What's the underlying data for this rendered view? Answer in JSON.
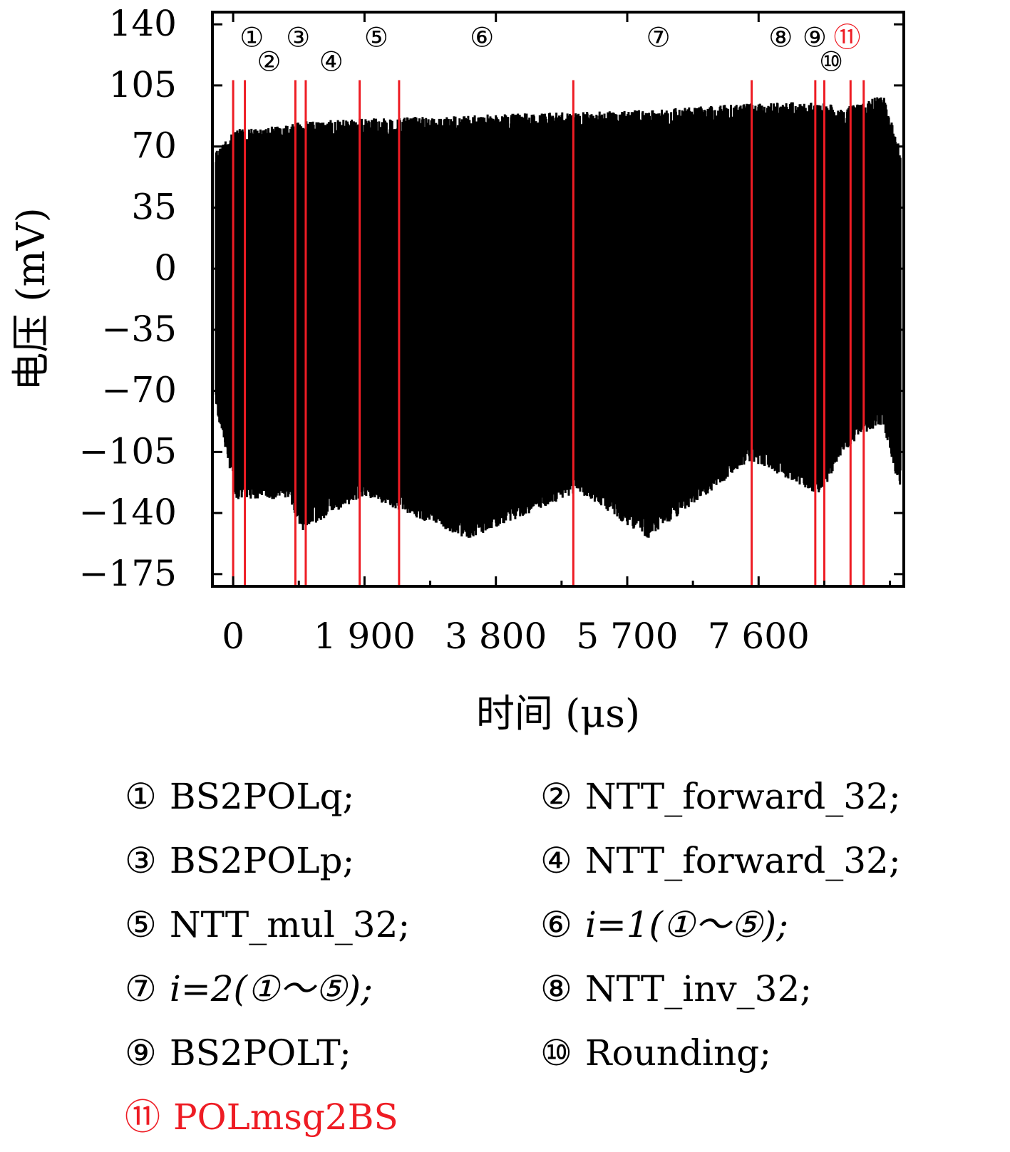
{
  "chart_data": {
    "type": "line",
    "xlabel": "时间 (μs)",
    "ylabel": "电压 (mV)",
    "xlim": [
      -300,
      9700
    ],
    "ylim": [
      -182,
      147
    ],
    "x_tick_labels": [
      "0",
      "1 900",
      "3 800",
      "5 700",
      "7 600"
    ],
    "x_tick_values": [
      0,
      1900,
      3800,
      5700,
      7600
    ],
    "y_tick_labels": [
      "140",
      "105",
      "70",
      "35",
      "0",
      "−35",
      "−70",
      "−105",
      "−140",
      "−175"
    ],
    "y_tick_values": [
      140,
      105,
      70,
      35,
      0,
      -35,
      -70,
      -105,
      -140,
      -175
    ],
    "series": [
      {
        "color": "#000000",
        "description_points": [
          {
            "x": -250,
            "max": 68,
            "min": -80
          },
          {
            "x": 50,
            "max": 80,
            "min": -132
          },
          {
            "x": 800,
            "max": 82,
            "min": -132
          },
          {
            "x": 1000,
            "max": 85,
            "min": -150
          },
          {
            "x": 1900,
            "max": 86,
            "min": -130
          },
          {
            "x": 3400,
            "max": 88,
            "min": -155
          },
          {
            "x": 5000,
            "max": 90,
            "min": -128
          },
          {
            "x": 6000,
            "max": 91,
            "min": -155
          },
          {
            "x": 7500,
            "max": 95,
            "min": -110
          },
          {
            "x": 8500,
            "max": 96,
            "min": -130
          },
          {
            "x": 8800,
            "max": 92,
            "min": -106
          },
          {
            "x": 9100,
            "max": 95,
            "min": -95
          },
          {
            "x": 9400,
            "max": 100,
            "min": -90
          },
          {
            "x": 9650,
            "max": 69,
            "min": -128
          }
        ]
      }
    ],
    "markers": {
      "color": "#ee1c24",
      "x": [
        0,
        170,
        900,
        1050,
        1830,
        2400,
        4920,
        7500,
        8420,
        8550,
        8930,
        9120
      ],
      "y_top": 108
    },
    "annotations": [
      {
        "label": "①",
        "x": 270,
        "y": 133,
        "color": "#000000"
      },
      {
        "label": "②",
        "x": 520,
        "y": 119,
        "color": "#000000"
      },
      {
        "label": "③",
        "x": 940,
        "y": 133,
        "color": "#000000"
      },
      {
        "label": "④",
        "x": 1420,
        "y": 119,
        "color": "#000000"
      },
      {
        "label": "⑤",
        "x": 2070,
        "y": 133,
        "color": "#000000"
      },
      {
        "label": "⑥",
        "x": 3600,
        "y": 133,
        "color": "#000000"
      },
      {
        "label": "⑦",
        "x": 6150,
        "y": 133,
        "color": "#000000"
      },
      {
        "label": "⑧",
        "x": 7920,
        "y": 133,
        "color": "#000000"
      },
      {
        "label": "⑨",
        "x": 8410,
        "y": 133,
        "color": "#000000"
      },
      {
        "label": "⑩",
        "x": 8650,
        "y": 119,
        "color": "#000000"
      },
      {
        "label": "⑪",
        "x": 8880,
        "y": 133,
        "color": "#ee1c24"
      }
    ]
  },
  "legend": {
    "items": [
      {
        "num": "①",
        "text": "BS2POLq;"
      },
      {
        "num": "②",
        "text": "NTT_forward_32;"
      },
      {
        "num": "③",
        "text": "BS2POLp;"
      },
      {
        "num": "④",
        "text": "NTT_forward_32;"
      },
      {
        "num": "⑤",
        "text": "NTT_mul_32;"
      },
      {
        "num": "⑥",
        "text": "i=1(①～⑤);"
      },
      {
        "num": "⑦",
        "text": "i=2(①～⑤);"
      },
      {
        "num": "⑧",
        "text": "NTT_inv_32;"
      },
      {
        "num": "⑨",
        "text": "BS2POLT;"
      },
      {
        "num": "⑩",
        "text": "Rounding;"
      },
      {
        "num": "⑪",
        "text": "POLmsg2BS"
      }
    ]
  }
}
